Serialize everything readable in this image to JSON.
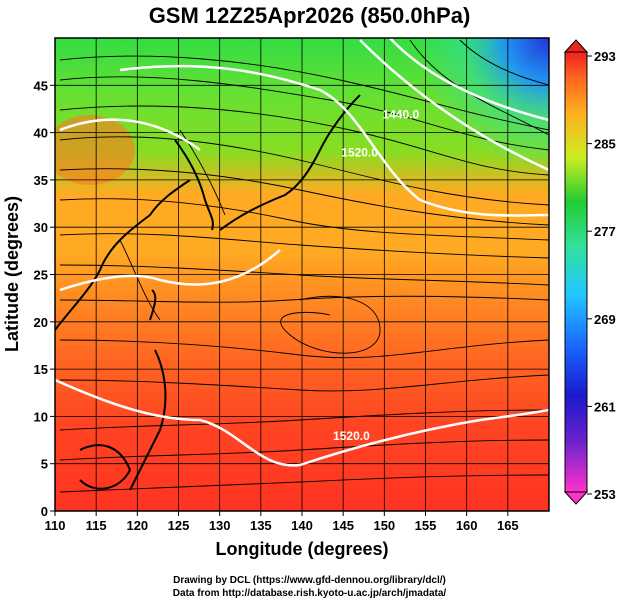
{
  "title": "GSM 12Z25Apr2026 (850.0hPa)",
  "map": {
    "xlabel": "Longitude (degrees)",
    "ylabel": "Latitude  (degrees)",
    "xlim": [
      110,
      170
    ],
    "ylim": [
      0,
      50
    ],
    "xticks": [
      110,
      115,
      120,
      125,
      130,
      135,
      140,
      145,
      150,
      155,
      160,
      165
    ],
    "yticks": [
      0,
      5,
      10,
      15,
      20,
      25,
      30,
      35,
      40,
      45
    ],
    "grid": true,
    "shaded_field": "temperature",
    "streamlines": "wind"
  },
  "contours": [
    {
      "label": "1440.0",
      "lon": 152,
      "lat": 41.5
    },
    {
      "label": "1520.0",
      "lon": 147,
      "lat": 37.5
    },
    {
      "label": "1520.0",
      "lon": 146,
      "lat": 7.5
    }
  ],
  "colorbar": {
    "labels": [
      "293",
      "285",
      "277",
      "269",
      "261",
      "253"
    ],
    "range": [
      253,
      293
    ],
    "colors": [
      "#ff33cc",
      "#1a1acc",
      "#1a66ff",
      "#22c8ff",
      "#33e099",
      "#22cc33",
      "#ccee22",
      "#ffb022",
      "#ff6622",
      "#ee2222"
    ]
  },
  "credits": {
    "line1": "Drawing by DCL (https://www.gfd-dennou.org/library/dcl/)",
    "line2": "Data from http://database.rish.kyoto-u.ac.jp/arch/jmadata/"
  }
}
